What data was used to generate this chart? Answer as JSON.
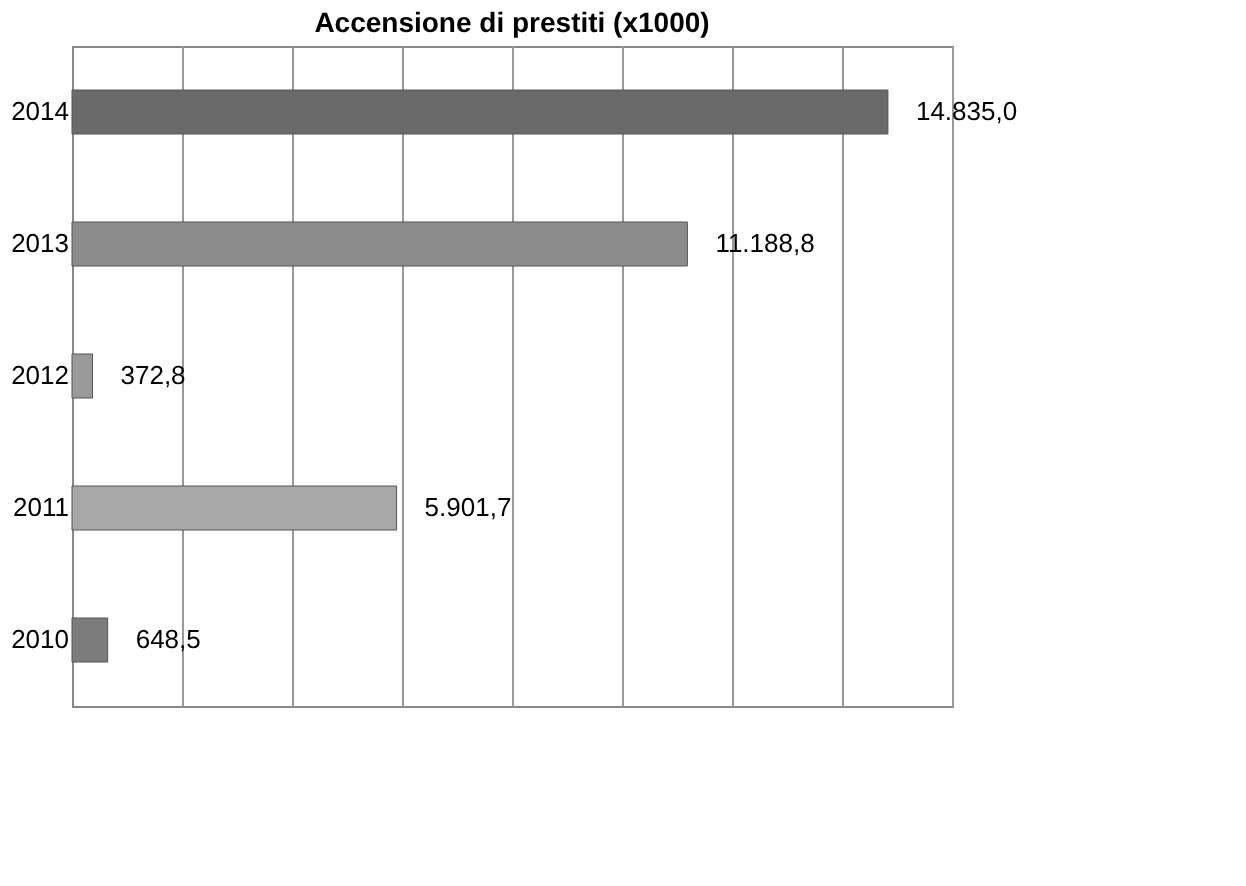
{
  "chart_data": {
    "type": "bar",
    "orientation": "horizontal",
    "title": "Accensione di prestiti (x1000)",
    "categories": [
      "2014",
      "2013",
      "2012",
      "2011",
      "2010"
    ],
    "values": [
      14835.0,
      11188.8,
      372.8,
      5901.7,
      648.5
    ],
    "value_labels": [
      "14.835,0",
      "11.188,8",
      "372,8",
      "5.901,7",
      "648,5"
    ],
    "colors": [
      "#6a6a6a",
      "#8c8c8c",
      "#9a9a9a",
      "#a8a8a8",
      "#7c7c7c"
    ],
    "grid": "x",
    "tick_labels": "y"
  }
}
